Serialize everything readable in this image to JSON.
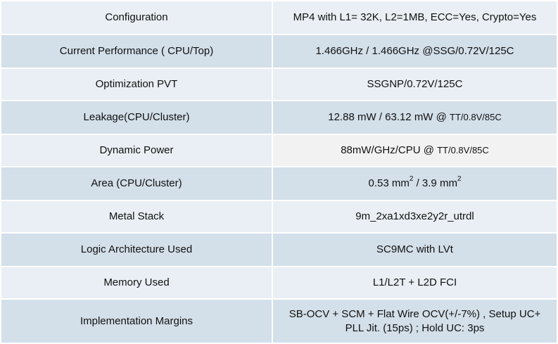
{
  "rows": [
    {
      "label": "Configuration",
      "value": "MP4 with L1= 32K, L2=1MB, ECC=Yes, Crypto=Yes"
    },
    {
      "label": "Current Performance ( CPU/Top)",
      "value": "1.466GHz / 1.466GHz @SSG/0.72V/125C"
    },
    {
      "label": "Optimization PVT",
      "value": "SSGNP/0.72V/125C"
    },
    {
      "label": "Leakage(CPU/Cluster)",
      "value_main": "12.88 mW / 63.12 mW @ ",
      "value_small": "TT/0.8V/85C"
    },
    {
      "label": "Dynamic Power",
      "value_main": "88mW/GHz/CPU @ ",
      "value_small": "TT/0.8V/85C"
    },
    {
      "label": "Area (CPU/Cluster)",
      "value_a": "0.53 mm",
      "value_sup_a": "2",
      "value_sep": " / 3.9 mm",
      "value_sup_b": "2"
    },
    {
      "label": "Metal Stack",
      "value": "9m_2xa1xd3xe2y2r_utrdl"
    },
    {
      "label": "Logic Architecture Used",
      "value": "SC9MC with LVt"
    },
    {
      "label": "Memory Used",
      "value": "L1/L2T + L2D FCI"
    },
    {
      "label": "Implementation Margins",
      "value_line1": "SB-OCV + SCM + Flat Wire OCV(+/-7%) , Setup UC+",
      "value_line2": "PLL Jit. (15ps)  ;  Hold UC: 3ps"
    }
  ]
}
